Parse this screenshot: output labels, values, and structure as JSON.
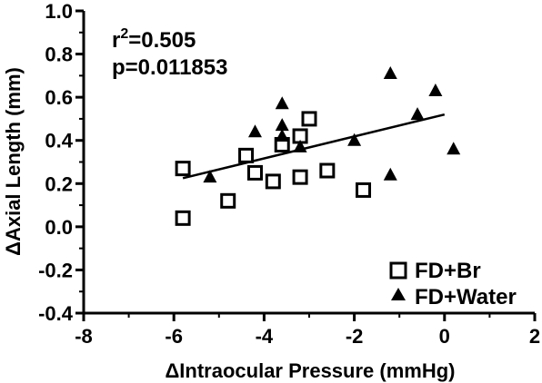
{
  "chart_data": {
    "type": "scatter",
    "title": "",
    "xlabel": "ΔIntraocular Pressure (mmHg)",
    "ylabel": "ΔAxial Length (mm)",
    "xlim": [
      -8,
      2
    ],
    "ylim": [
      -0.4,
      1.0
    ],
    "xticks": [
      "-8",
      "-6",
      "-4",
      "-2",
      "0",
      "2"
    ],
    "yticks": [
      "-0.4",
      "-0.2",
      "0.0",
      "0.2",
      "0.4",
      "0.6",
      "0.8",
      "1.0"
    ],
    "legend_position": "bottom-right",
    "stats": {
      "r2_prefix": "r",
      "r2_sup": "2",
      "r2_value": "=0.505",
      "p": "p=0.011853"
    },
    "series": [
      {
        "name": "FD+Br",
        "marker": "open-square",
        "color": "#000000",
        "points": [
          [
            -5.8,
            0.27
          ],
          [
            -5.8,
            0.04
          ],
          [
            -4.8,
            0.12
          ],
          [
            -4.4,
            0.33
          ],
          [
            -4.2,
            0.25
          ],
          [
            -3.8,
            0.21
          ],
          [
            -3.6,
            0.38
          ],
          [
            -3.2,
            0.42
          ],
          [
            -3.2,
            0.23
          ],
          [
            -3.0,
            0.5
          ],
          [
            -2.6,
            0.26
          ],
          [
            -1.8,
            0.17
          ]
        ]
      },
      {
        "name": "FD+Water",
        "marker": "filled-triangle",
        "color": "#000000",
        "points": [
          [
            -5.2,
            0.23
          ],
          [
            -4.2,
            0.44
          ],
          [
            -3.6,
            0.57
          ],
          [
            -3.6,
            0.47
          ],
          [
            -3.6,
            0.42
          ],
          [
            -3.2,
            0.37
          ],
          [
            -2.0,
            0.4
          ],
          [
            -1.2,
            0.71
          ],
          [
            -1.2,
            0.24
          ],
          [
            -0.6,
            0.52
          ],
          [
            -0.2,
            0.63
          ],
          [
            0.2,
            0.36
          ]
        ]
      }
    ],
    "regression_line": {
      "x": [
        -5.8,
        0.0
      ],
      "y": [
        0.225,
        0.52
      ]
    }
  }
}
